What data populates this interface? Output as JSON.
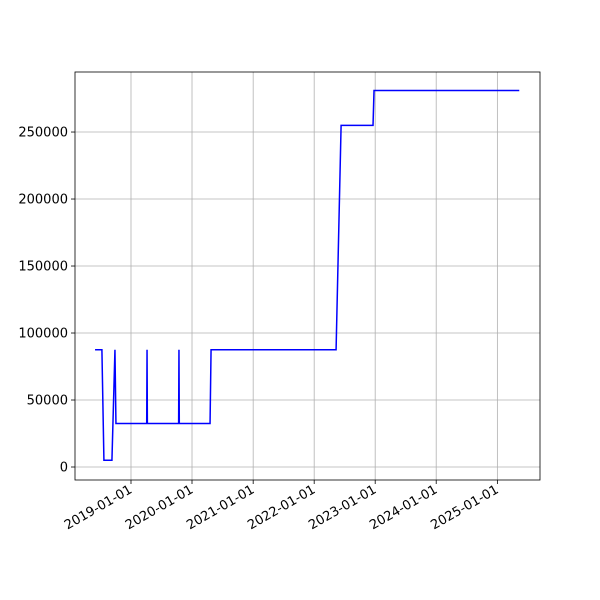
{
  "chart_data": {
    "type": "line",
    "color": "#0000ff",
    "grid": true,
    "x": [
      "2018-05-31",
      "2018-07-11",
      "2018-07-23",
      "2018-09-09",
      "2018-09-27",
      "2018-10-03",
      "2019-04-05",
      "2019-04-07",
      "2019-04-09",
      "2019-10-13",
      "2019-10-15",
      "2019-10-17",
      "2020-04-18",
      "2020-04-24",
      "2022-05-12",
      "2022-06-11",
      "2022-12-19",
      "2022-12-25",
      "2025-05-12"
    ],
    "values": [
      87500,
      87500,
      5000,
      5000,
      87500,
      32500,
      32500,
      87500,
      32500,
      32500,
      87500,
      32500,
      32500,
      87500,
      87500,
      255000,
      255000,
      281000,
      281000
    ],
    "xlim": [
      "2018-01-31",
      "2025-09-13"
    ],
    "xticks": [
      "2019-01-01",
      "2020-01-01",
      "2021-01-01",
      "2022-01-01",
      "2023-01-01",
      "2024-01-01",
      "2025-01-01"
    ],
    "ylim": [
      -9700,
      294800
    ],
    "yticks": [
      0,
      50000,
      100000,
      150000,
      200000,
      250000
    ]
  }
}
